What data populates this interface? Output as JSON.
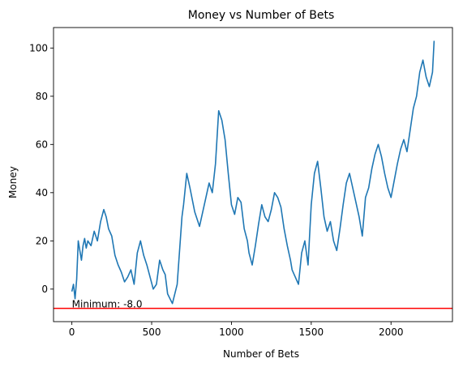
{
  "chart_data": {
    "type": "line",
    "title": "Money vs Number of Bets",
    "xlabel": "Number of Bets",
    "ylabel": "Money",
    "xlim": [
      -115,
      2385
    ],
    "ylim": [
      -13.5,
      108.5
    ],
    "xticks": [
      0,
      500,
      1000,
      1500,
      2000
    ],
    "yticks": [
      0,
      20,
      40,
      60,
      80,
      100
    ],
    "grid": false,
    "line_color": "#1f77b4",
    "series": [
      {
        "x": [
          0,
          10,
          20,
          30,
          40,
          50,
          60,
          70,
          80,
          90,
          100,
          120,
          140,
          160,
          180,
          200,
          215,
          230,
          250,
          270,
          290,
          310,
          330,
          350,
          370,
          390,
          410,
          430,
          450,
          470,
          490,
          510,
          530,
          550,
          570,
          585,
          600,
          630,
          660,
          690,
          700,
          720,
          740,
          770,
          800,
          830,
          860,
          880,
          900,
          920,
          940,
          960,
          980,
          1000,
          1020,
          1040,
          1060,
          1080,
          1100,
          1110,
          1130,
          1150,
          1170,
          1190,
          1210,
          1230,
          1250,
          1270,
          1290,
          1310,
          1330,
          1350,
          1370,
          1380,
          1400,
          1420,
          1440,
          1460,
          1480,
          1500,
          1520,
          1540,
          1560,
          1580,
          1600,
          1620,
          1640,
          1660,
          1680,
          1700,
          1720,
          1740,
          1760,
          1780,
          1800,
          1820,
          1840,
          1860,
          1880,
          1900,
          1920,
          1940,
          1960,
          1980,
          2000,
          2020,
          2040,
          2060,
          2080,
          2100,
          2120,
          2140,
          2160,
          2180,
          2200,
          2220,
          2240,
          2260,
          2270
        ],
        "y": [
          -1,
          2,
          -4,
          4,
          20,
          16,
          12,
          18,
          21,
          17,
          20,
          18,
          24,
          20,
          28,
          33,
          30,
          25,
          22,
          14,
          10,
          7,
          3,
          5,
          8,
          2,
          15,
          20,
          14,
          10,
          5,
          0,
          2,
          12,
          8,
          6,
          -2,
          -6,
          2,
          30,
          35,
          48,
          42,
          32,
          26,
          35,
          44,
          40,
          52,
          74,
          70,
          62,
          48,
          35,
          31,
          38,
          36,
          25,
          20,
          15,
          10,
          18,
          27,
          35,
          30,
          28,
          33,
          40,
          38,
          34,
          25,
          18,
          12,
          8,
          5,
          2,
          15,
          20,
          10,
          35,
          48,
          53,
          42,
          30,
          24,
          28,
          20,
          16,
          25,
          35,
          44,
          48,
          42,
          36,
          30,
          22,
          38,
          42,
          50,
          56,
          60,
          55,
          48,
          42,
          38,
          45,
          52,
          58,
          62,
          57,
          66,
          75,
          80,
          90,
          95,
          88,
          84,
          90,
          103
        ],
        "min_value": -8.0
      }
    ],
    "hline": {
      "y": -8,
      "color": "#ff0000"
    },
    "annotation": "Minimum: -8.0"
  }
}
